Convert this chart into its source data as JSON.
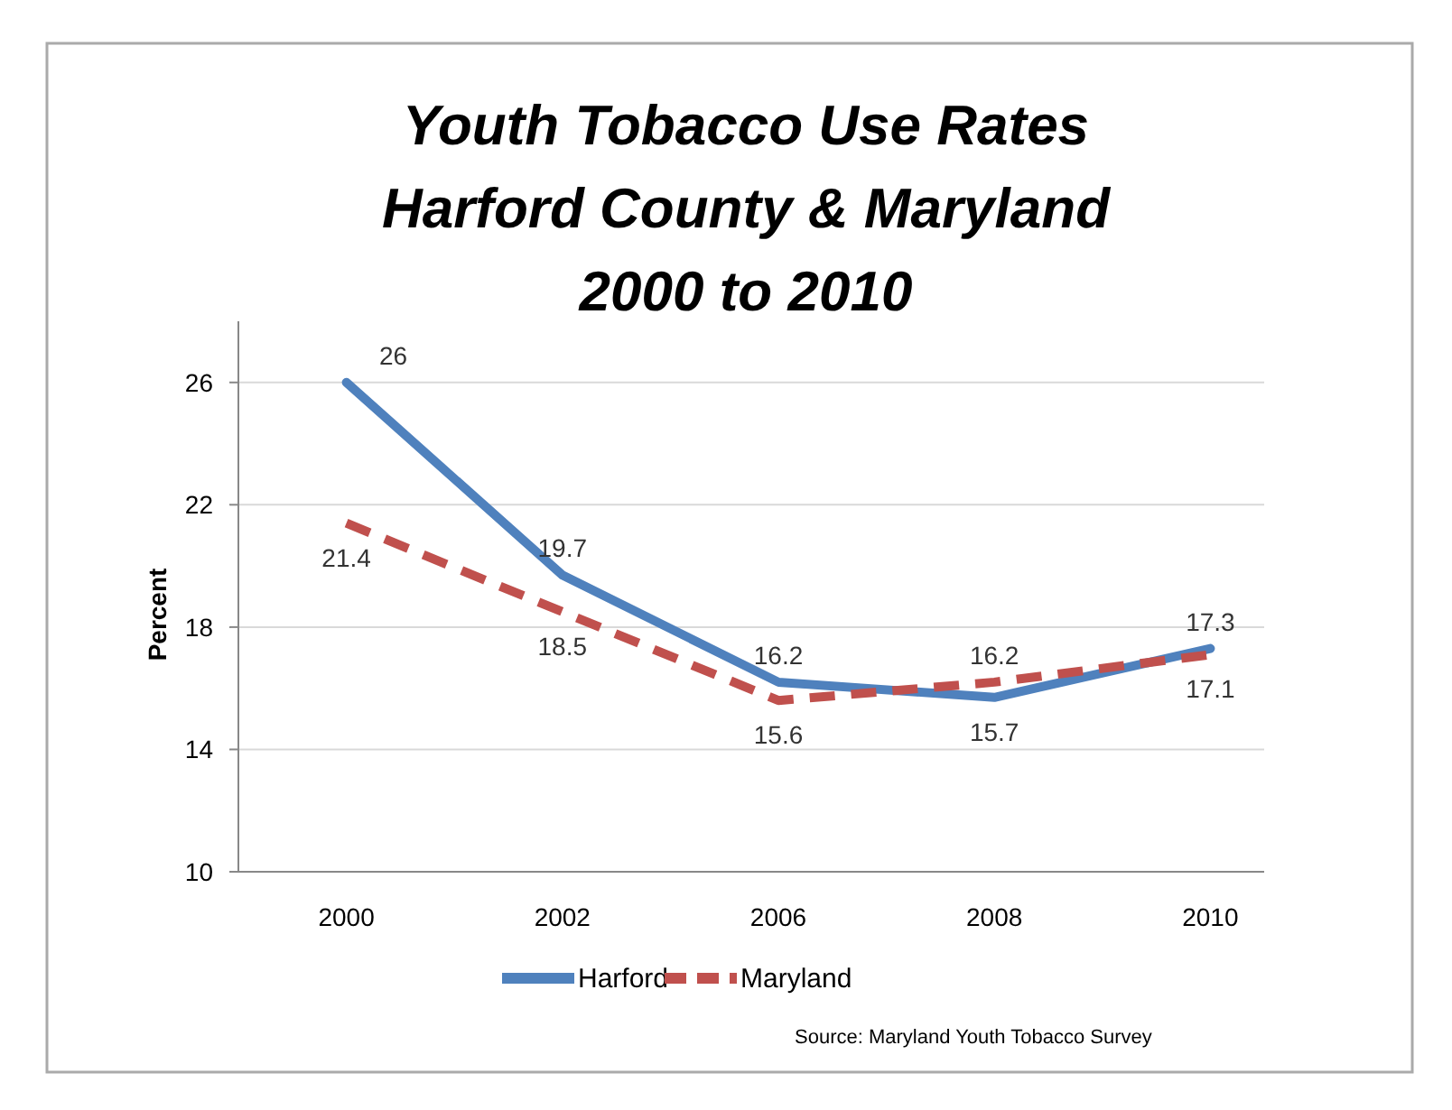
{
  "chart_data": {
    "type": "line",
    "title": "Youth Tobacco Use Rates\nHarford County & Maryland\n2000 to 2010",
    "ylabel": "Percent",
    "categories": [
      "2000",
      "2002",
      "2006",
      "2008",
      "2010"
    ],
    "series": [
      {
        "name": "Harford",
        "color": "#4f81bd",
        "line_style": "solid",
        "values": [
          26,
          19.7,
          16.2,
          15.7,
          17.3
        ]
      },
      {
        "name": "Maryland",
        "color": "#c0504d",
        "line_style": "dashed",
        "values": [
          21.4,
          18.5,
          15.6,
          16.2,
          17.1
        ]
      }
    ],
    "ylim": [
      10,
      28
    ],
    "yticks": [
      10,
      14,
      18,
      22,
      26
    ],
    "grid": "y",
    "legend": "bottom",
    "data_labels": true,
    "marker": "none",
    "annotations": [
      "Source:  Maryland Youth Tobacco Survey"
    ]
  }
}
